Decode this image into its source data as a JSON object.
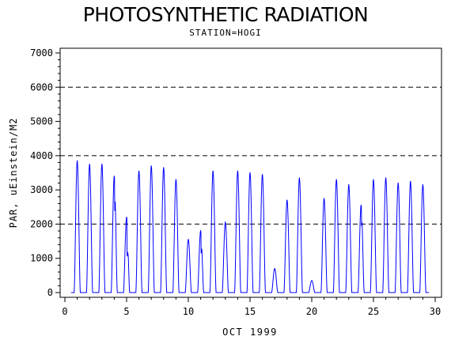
{
  "chart_data": {
    "type": "line",
    "title": "PHOTOSYNTHETIC RADIATION",
    "subtitle": "STATION=HOGI",
    "xlabel": "OCT 1999",
    "ylabel": "PAR, uEinstein/M2",
    "xlim": [
      0,
      30
    ],
    "ylim": [
      0,
      7000
    ],
    "x_ticks": [
      0,
      5,
      10,
      15,
      20,
      25,
      30
    ],
    "y_ticks": [
      0,
      1000,
      2000,
      3000,
      4000,
      5000,
      6000,
      7000
    ],
    "reference_lines": [
      2000,
      4000,
      6000
    ],
    "line_color": "#0000ff",
    "daily_peaks": [
      {
        "day": 1,
        "peak": 3850
      },
      {
        "day": 2,
        "peak": 3750
      },
      {
        "day": 3,
        "peak": 3750
      },
      {
        "day": 4,
        "peak": 3400,
        "secondary": 2700
      },
      {
        "day": 5,
        "peak": 2200,
        "secondary": 1200
      },
      {
        "day": 6,
        "peak": 3550
      },
      {
        "day": 7,
        "peak": 3700
      },
      {
        "day": 8,
        "peak": 3650
      },
      {
        "day": 9,
        "peak": 3300
      },
      {
        "day": 10,
        "peak": 1550
      },
      {
        "day": 11,
        "peak": 1800,
        "secondary": 1300
      },
      {
        "day": 12,
        "peak": 3550
      },
      {
        "day": 13,
        "peak": 2050
      },
      {
        "day": 14,
        "peak": 3550
      },
      {
        "day": 15,
        "peak": 3500
      },
      {
        "day": 16,
        "peak": 3450
      },
      {
        "day": 17,
        "peak": 700
      },
      {
        "day": 18,
        "peak": 2700
      },
      {
        "day": 19,
        "peak": 3350
      },
      {
        "day": 20,
        "peak": 350
      },
      {
        "day": 21,
        "peak": 2750
      },
      {
        "day": 22,
        "peak": 3300
      },
      {
        "day": 23,
        "peak": 3150
      },
      {
        "day": 24,
        "peak": 2550,
        "secondary": 2200
      },
      {
        "day": 25,
        "peak": 3300
      },
      {
        "day": 26,
        "peak": 3350
      },
      {
        "day": 27,
        "peak": 3200
      },
      {
        "day": 28,
        "peak": 3250
      },
      {
        "day": 29,
        "peak": 3150
      }
    ]
  }
}
